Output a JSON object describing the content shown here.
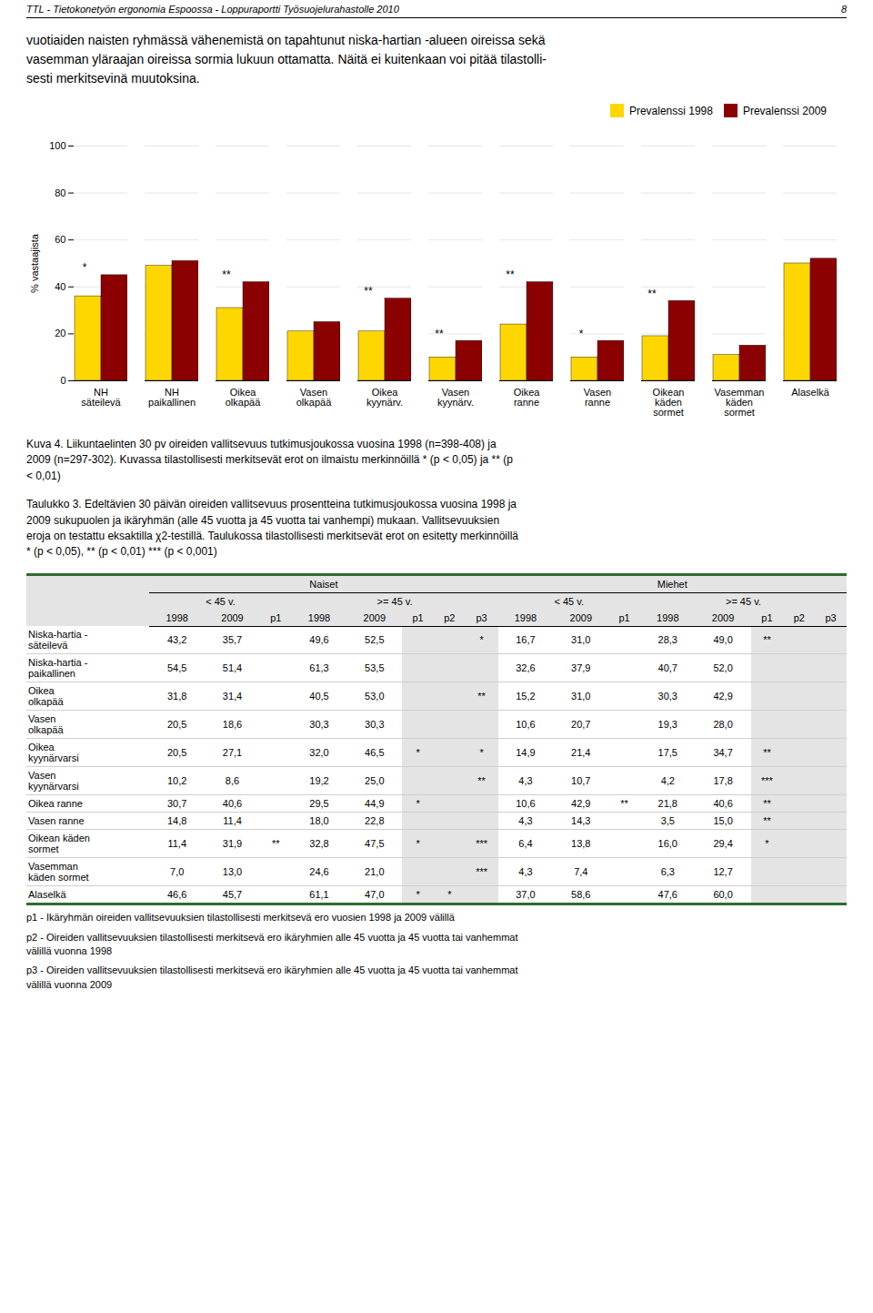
{
  "header": "TTL - Tietokonetyön ergonomia Espoossa - Loppuraportti Työsuojelurahastolle 2010",
  "page_num": "8",
  "body_text": "vuotiaiden naisten ryhmässä vähenemistä on tapahtunut niska-hartian -alueen oireissa sekä\nvasemman yläraajan oireissa sormia lukuun ottamatta. Näitä ei kuitenkaan voi pitää tilastolli-\nsesti merkitsevinä muutoksina.",
  "chart_data": {
    "type": "bar",
    "categories": [
      "NH\nsäteilevä",
      "NH\npaikallinen",
      "Oikea\nolkapää",
      "Vasen\nolkapää",
      "Oikea\nkyynärv.",
      "Vasen\nkyynärv.",
      "Oikea\nranne",
      "Vasen\nranne",
      "Oikean\nkäden\nsormet",
      "Vasemman\nkäden\nsormet",
      "Alaselkä"
    ],
    "series": [
      {
        "name": "Prevalenssi 1998",
        "color": "#FFD700",
        "values": [
          36,
          49,
          31,
          21,
          21,
          10,
          24,
          10,
          19,
          11,
          50
        ]
      },
      {
        "name": "Prevalenssi 2009",
        "color": "#8B0000",
        "values": [
          45,
          51,
          42,
          25,
          35,
          17,
          42,
          17,
          34,
          15,
          52
        ]
      }
    ],
    "ylabel": "% vastaajista",
    "ylim": [
      0,
      100
    ],
    "yticks": [
      0,
      20,
      40,
      60,
      80,
      100
    ],
    "grid": true,
    "legend": "upper right",
    "annotations": [
      {
        "category": "NH\nsäteilevä",
        "text": "*"
      },
      {
        "category": "Oikea\nolkapää",
        "text": "**"
      },
      {
        "category": "Oikea\nkyynärv.",
        "text": "**"
      },
      {
        "category": "Vasen\nkyynärv.",
        "text": "**"
      },
      {
        "category": "Oikea\nranne",
        "text": "**"
      },
      {
        "category": "Vasen\nranne",
        "text": "*"
      },
      {
        "category": "Oikean\nkäden\nsormet",
        "text": "**"
      }
    ],
    "caption": "Kuva 4.  Liikuntaelinten 30 pv oireiden vallitsevuus tutkimusjoukossa vuosina 1998 (n=398-408) ja\n2009 (n=297-302). Kuvassa tilastollisesti merkitsevät erot on ilmaistu merkinnöillä * (p < 0,05) ja ** (p\n< 0,01)"
  },
  "taulukko_intro": "Taulukko 3.  Edeltävien 30 päivän oireiden vallitsevuus prosentteina tutkimusjoukossa vuosina 1998 ja\n2009 sukupuolen ja ikäryhmän (alle 45 vuotta ja 45 vuotta tai vanhempi) mukaan. Vallitsevuuksien\neroja on testattu eksaktilla χ2-testillä. Taulukossa tilastollisesti merkitsevät erot on esitetty merkinnöillä\n* (p < 0,05), ** (p < 0,01) *** (p < 0,001)",
  "table": {
    "groups": [
      {
        "label": "Naiset",
        "subgroups": [
          {
            "label": "< 45 v.",
            "columns": [
              "1998",
              "2009",
              "p1"
            ]
          },
          {
            "label": ">= 45 v.",
            "columns": [
              "1998",
              "2009",
              "p1",
              "p2",
              "p3"
            ]
          }
        ]
      },
      {
        "label": "Miehet",
        "subgroups": [
          {
            "label": "< 45 v.",
            "columns": [
              "1998",
              "2009",
              "p1"
            ]
          },
          {
            "label": ">= 45 v.",
            "columns": [
              "1998",
              "2009",
              "p1",
              "p2",
              "p3"
            ]
          }
        ]
      }
    ],
    "rows": [
      {
        "label": "Niska-hartia -\nsäteilevä",
        "cells": [
          "43,2",
          "35,7",
          null,
          "49,6",
          "52,5",
          null,
          null,
          "*",
          "16,7",
          "31,0",
          null,
          "28,3",
          "49,0",
          "**",
          null,
          null
        ]
      },
      {
        "label": "Niska-hartia -\npaikallinen",
        "cells": [
          "54,5",
          "51,4",
          null,
          "61,3",
          "53,5",
          null,
          null,
          null,
          "32,6",
          "37,9",
          null,
          "40,7",
          "52,0",
          null,
          null,
          null
        ]
      },
      {
        "label": "Oikea\nolkapää",
        "cells": [
          "31,8",
          "31,4",
          null,
          "40,5",
          "53,0",
          null,
          null,
          "**",
          "15,2",
          "31,0",
          null,
          "30,3",
          "42,9",
          null,
          null,
          null
        ]
      },
      {
        "label": "Vasen\nolkapää",
        "cells": [
          "20,5",
          "18,6",
          null,
          "30,3",
          "30,3",
          null,
          null,
          null,
          "10,6",
          "20,7",
          null,
          "19,3",
          "28,0",
          null,
          null,
          null
        ]
      },
      {
        "label": "Oikea\nkyynärvarsi",
        "cells": [
          "20,5",
          "27,1",
          null,
          "32,0",
          "46,5",
          "*",
          null,
          "*",
          "14,9",
          "21,4",
          null,
          "17,5",
          "34,7",
          "**",
          null,
          null
        ]
      },
      {
        "label": "Vasen\nkyynärvarsi",
        "cells": [
          "10,2",
          "8,6",
          null,
          "19,2",
          "25,0",
          null,
          null,
          "**",
          "4,3",
          "10,7",
          null,
          "4,2",
          "17,8",
          "***",
          null,
          null
        ]
      },
      {
        "label": "Oikea ranne",
        "cells": [
          "30,7",
          "40,6",
          null,
          "29,5",
          "44,9",
          "*",
          null,
          null,
          "10,6",
          "42,9",
          "**",
          "21,8",
          "40,6",
          "**",
          null,
          null
        ]
      },
      {
        "label": "Vasen ranne",
        "cells": [
          "14,8",
          "11,4",
          null,
          "18,0",
          "22,8",
          null,
          null,
          null,
          "4,3",
          "14,3",
          null,
          "3,5",
          "15,0",
          "**",
          null,
          null
        ]
      },
      {
        "label": "Oikean käden\nsormet",
        "cells": [
          "11,4",
          "31,9",
          "**",
          "32,8",
          "47,5",
          "*",
          null,
          "***",
          "6,4",
          "13,8",
          null,
          "16,0",
          "29,4",
          "*",
          null,
          null
        ]
      },
      {
        "label": "Vasemman\nkäden sormet",
        "cells": [
          "7,0",
          "13,0",
          null,
          "24,6",
          "21,0",
          null,
          null,
          "***",
          "4,3",
          "7,4",
          null,
          "6,3",
          "12,7",
          null,
          null,
          null
        ]
      },
      {
        "label": "Alaselkä",
        "cells": [
          "46,6",
          "45,7",
          null,
          "61,1",
          "47,0",
          "*",
          "*",
          null,
          "37,0",
          "58,6",
          null,
          "47,6",
          "60,0",
          null,
          null,
          null
        ]
      }
    ]
  },
  "footnotes": [
    "p1 - Ikäryhmän oireiden vallitsevuuksien tilastollisesti merkitsevä ero vuosien 1998 ja 2009 välillä",
    "p2 - Oireiden vallitsevuuksien tilastollisesti merkitsevä ero ikäryhmien alle 45 vuotta ja 45 vuotta tai vanhemmat\nvälillä vuonna 1998",
    "p3 - Oireiden vallitsevuuksien tilastollisesti merkitsevä ero ikäryhmien alle 45 vuotta ja 45 vuotta tai vanhemmat\nvälillä vuonna 2009"
  ]
}
